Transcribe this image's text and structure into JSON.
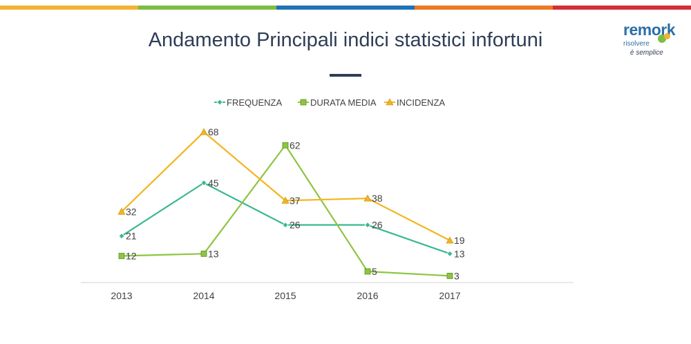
{
  "title": "Andamento Principali indici statistici infortuni",
  "logo": {
    "word": "remork",
    "tagline1": "risolvere",
    "tagline2": "è semplice"
  },
  "topbar_colors": [
    "#f2b233",
    "#7dbd43",
    "#1f73b7",
    "#ec7a24",
    "#d42f36"
  ],
  "chart_data": {
    "type": "line",
    "categories": [
      "2013",
      "2014",
      "2015",
      "2016",
      "2017"
    ],
    "series": [
      {
        "name": "FREQUENZA",
        "values": [
          21,
          45,
          26,
          26,
          13
        ],
        "color": "#3ab893",
        "marker": "diamond"
      },
      {
        "name": "DURATA MEDIA",
        "values": [
          12,
          13,
          62,
          5,
          3
        ],
        "color": "#8cc540",
        "marker": "square"
      },
      {
        "name": "INCIDENZA",
        "values": [
          32,
          68,
          37,
          38,
          19
        ],
        "color": "#f2b51d",
        "marker": "triangle"
      }
    ],
    "ylim": [
      0,
      73
    ],
    "grid": false,
    "legend_position": "top"
  }
}
